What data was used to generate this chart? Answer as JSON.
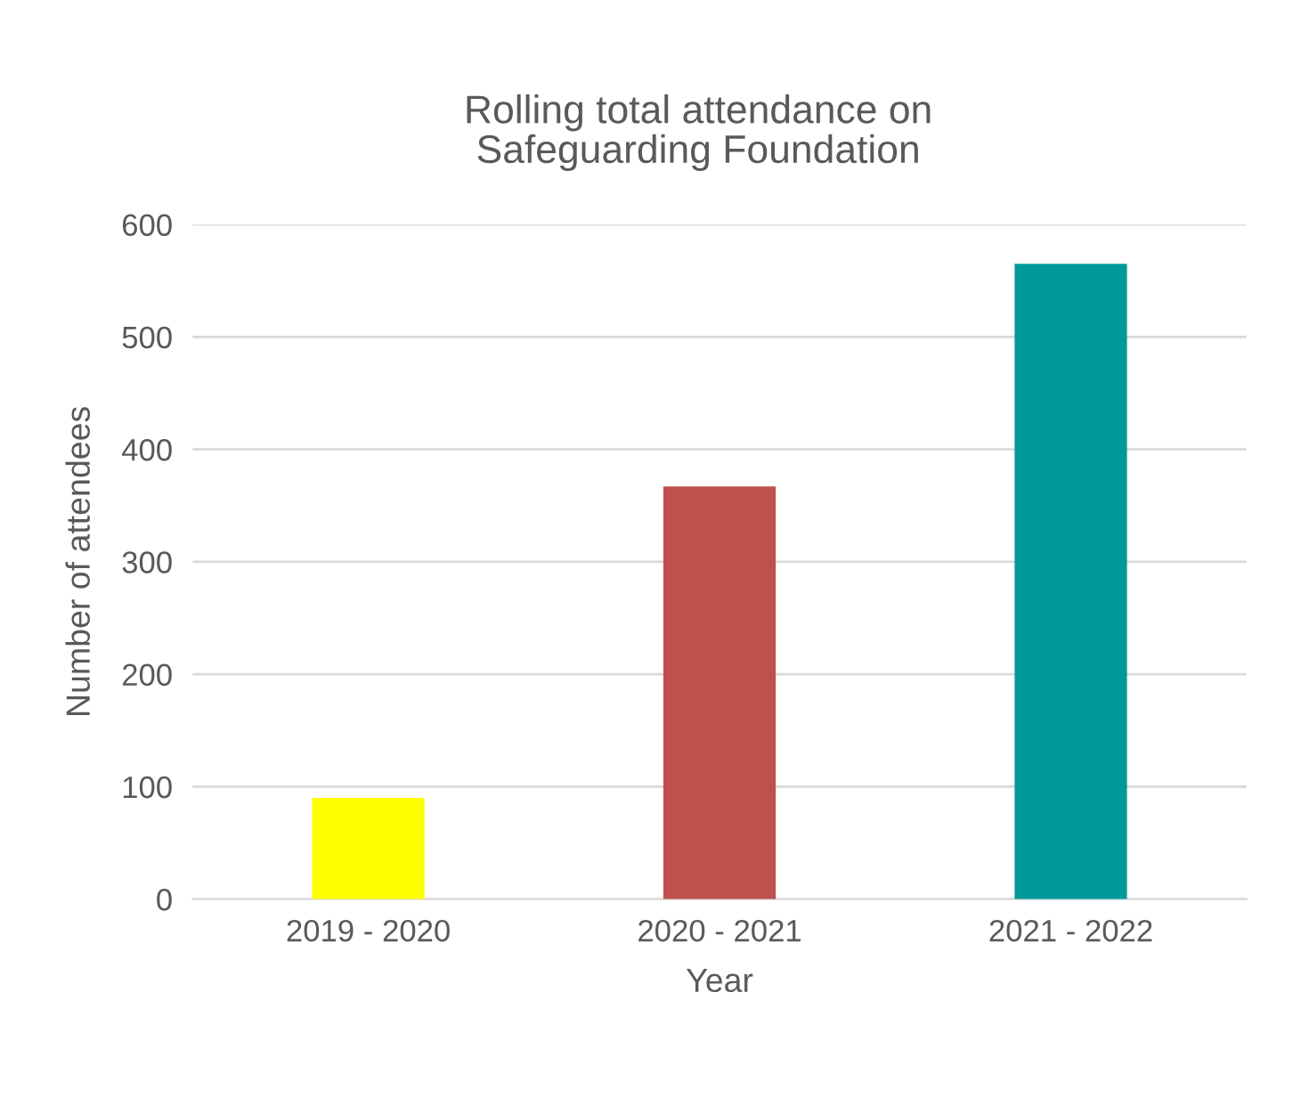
{
  "chart_data": {
    "type": "bar",
    "title": "Rolling total attendance on\nSafeguarding Foundation",
    "xlabel": "Year",
    "ylabel": "Number of attendees",
    "categories": [
      "2019 - 2020",
      "2020 - 2021",
      "2021 - 2022"
    ],
    "values": [
      90,
      367,
      565
    ],
    "colors": [
      "#ffff00",
      "#c0504d",
      "#009999"
    ],
    "ylim": [
      0,
      600
    ],
    "yticks": [
      0,
      100,
      200,
      300,
      400,
      500,
      600
    ],
    "grid": "y",
    "legend": false
  }
}
